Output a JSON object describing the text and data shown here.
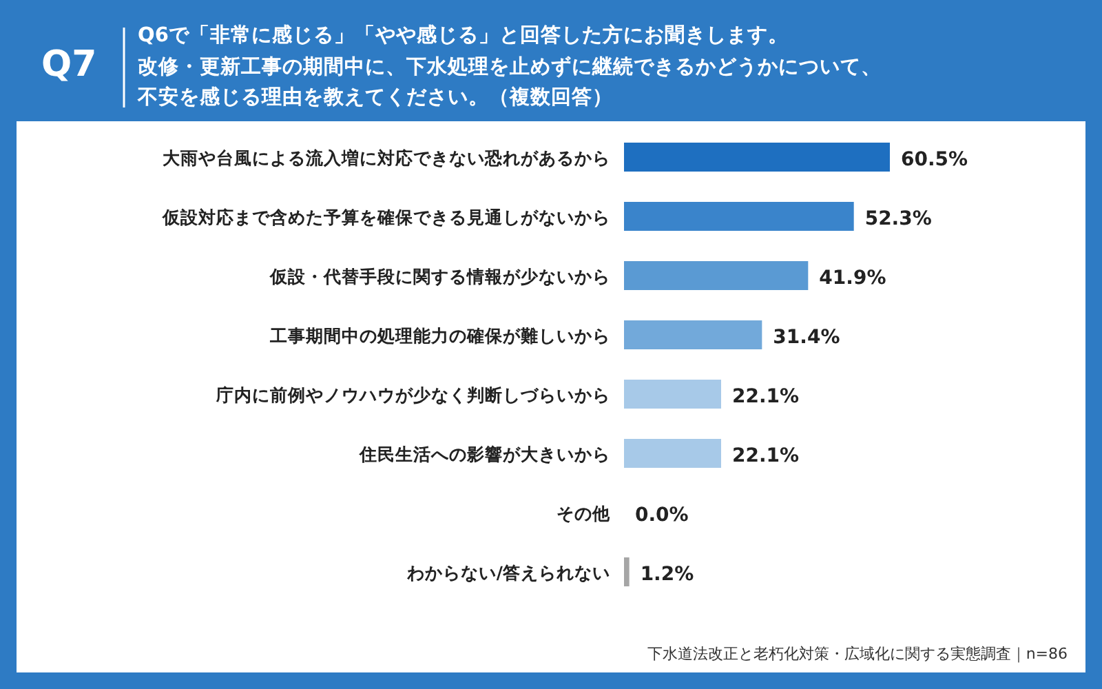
{
  "chart_data": {
    "type": "bar",
    "orientation": "horizontal",
    "title": "Q6で「非常に感じる」「やや感じる」と回答した方にお聞きします。",
    "subtitle": "改修・更新工事の期間中に、下水処理を止めずに継続できるかどうかについて、不安を感じる理由を教えてください。（複数回答）",
    "annotations": [
      "Q7",
      "下水道法改正と老朽化対策・広域化に関する実態調査｜n=86"
    ],
    "categories": [
      "大雨や台風による流入増に対応できない恐れがあるから",
      "仮設対応まで含めた予算を確保できる見通しがないから",
      "仮設・代替手段に関する情報が少ないから",
      "工事期間中の処理能力の確保が難しいから",
      "庁内に前例やノウハウが少なく判断しづらいから",
      "住民生活への影響が大きいから",
      "その他",
      "わからない/答えられない"
    ],
    "values": [
      60.5,
      52.3,
      41.9,
      31.4,
      22.1,
      22.1,
      0.0,
      1.2
    ],
    "value_labels": [
      "60.5%",
      "52.3%",
      "41.9%",
      "31.4%",
      "22.1%",
      "22.1%",
      "0.0%",
      "1.2%"
    ],
    "colors": [
      "#1e6fc0",
      "#3a84cb",
      "#5a9ad3",
      "#72a9da",
      "#a7c9e8",
      "#a7c9e8",
      "#a7c9e8",
      "#a6a6a6"
    ]
  }
}
